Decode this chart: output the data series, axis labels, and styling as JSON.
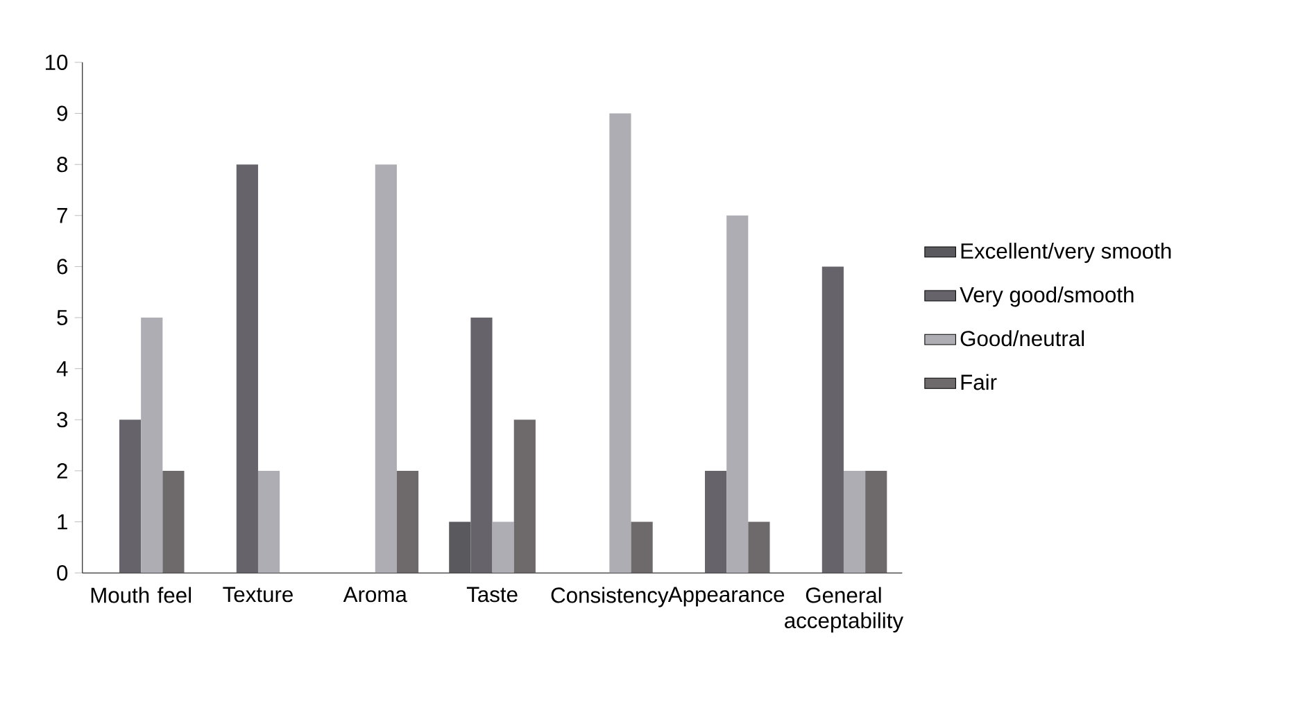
{
  "chart_data": {
    "type": "bar",
    "categories": [
      "Mouth feel",
      "Texture",
      "Aroma",
      "Taste",
      "Consistency",
      "Appearance",
      "General acceptability"
    ],
    "series": [
      {
        "name": "Excellent/very smooth",
        "color": "#5a5a5e",
        "values": [
          0,
          0,
          0,
          1,
          0,
          0,
          0
        ]
      },
      {
        "name": "Very good/smooth",
        "color": "#66646a",
        "values": [
          3,
          8,
          0,
          5,
          0,
          2,
          6
        ]
      },
      {
        "name": "Good/neutral",
        "color": "#aeadb3",
        "values": [
          5,
          2,
          8,
          1,
          9,
          7,
          2
        ]
      },
      {
        "name": "Fair",
        "color": "#6e6a6c",
        "values": [
          2,
          0,
          2,
          3,
          1,
          1,
          2
        ]
      }
    ],
    "ylim": [
      0,
      10
    ],
    "yticks": [
      0,
      1,
      2,
      3,
      4,
      5,
      6,
      7,
      8,
      9,
      10
    ],
    "grid": false,
    "legend": "right"
  }
}
